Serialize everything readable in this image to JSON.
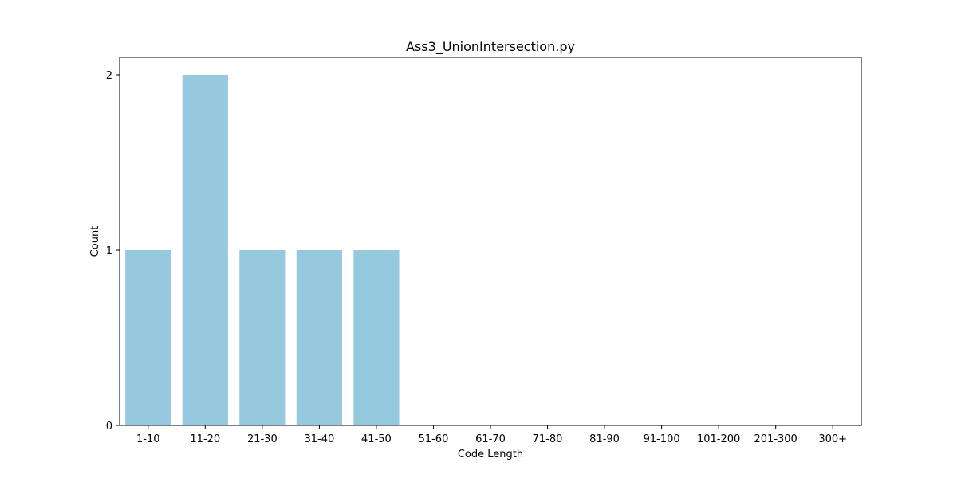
{
  "chart_data": {
    "type": "bar",
    "title": "Ass3_UnionIntersection.py",
    "xlabel": "Code Length",
    "ylabel": "Count",
    "categories": [
      "1-10",
      "11-20",
      "21-30",
      "31-40",
      "41-50",
      "51-60",
      "61-70",
      "71-80",
      "81-90",
      "91-100",
      "101-200",
      "201-300",
      "300+"
    ],
    "values": [
      1,
      2,
      1,
      1,
      1,
      0,
      0,
      0,
      0,
      0,
      0,
      0,
      0
    ],
    "ylim": [
      0,
      2.1
    ],
    "yticks": [
      0,
      1,
      2
    ],
    "grid": false,
    "bar_color": "#95c9de"
  }
}
